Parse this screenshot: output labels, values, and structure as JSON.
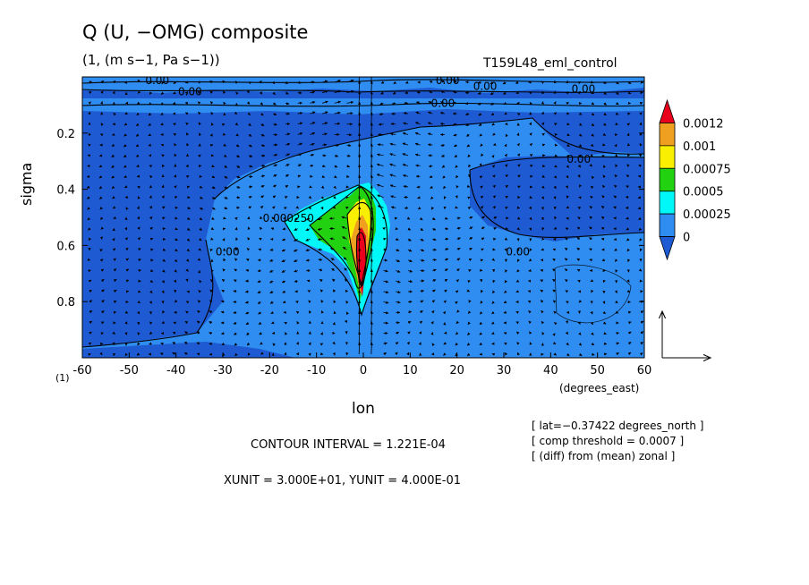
{
  "figure": {
    "title": "Q (U, −OMG) composite",
    "subtitle": "(1, (m s−1, Pa s−1))",
    "run_name": "T159L48_eml_control",
    "contour_interval": "CONTOUR INTERVAL = 1.221E-04",
    "vector_units": "XUNIT = 3.000E+01, YUNIT = 4.000E-01",
    "notes": [
      "[ lat=−0.37422 degrees_north ]",
      "[ comp threshold = 0.0007 ]",
      "[ (diff) from (mean) zonal ]"
    ],
    "one_label": "(1)"
  },
  "chart_data": {
    "type": "heatmap",
    "title": "Q (U, −OMG) composite",
    "xlabel": "lon",
    "x_units": "(degrees_east)",
    "ylabel": "sigma",
    "xlim": [
      -60,
      60
    ],
    "ylim": [
      1.0,
      0.0
    ],
    "x_ticks": [
      -60,
      -50,
      -40,
      -30,
      -20,
      -10,
      0,
      10,
      20,
      30,
      40,
      50,
      60
    ],
    "y_ticks": [
      0.2,
      0.4,
      0.6,
      0.8
    ],
    "colorbar": {
      "levels": [
        "0.0012",
        "0.001",
        "0.00075",
        "0.0005",
        "0.00025",
        "0"
      ],
      "colors": [
        "#e8001c",
        "#f0a020",
        "#f8f000",
        "#22d210",
        "#00f8f8",
        "#2f8cf0",
        "#1e5ad2"
      ]
    },
    "contour_labels": [
      {
        "text": "0.00",
        "lon": -44,
        "sigma": 0.01
      },
      {
        "text": "0.00",
        "lon": -37,
        "sigma": 0.05
      },
      {
        "text": "0.00",
        "lon": 18,
        "sigma": 0.01
      },
      {
        "text": "0.00",
        "lon": 26,
        "sigma": 0.03
      },
      {
        "text": "0.00",
        "lon": 17,
        "sigma": 0.09
      },
      {
        "text": "0.00",
        "lon": 47,
        "sigma": 0.04
      },
      {
        "text": "0.00",
        "lon": 46,
        "sigma": 0.29
      },
      {
        "text": "0.00",
        "lon": 33,
        "sigma": 0.62
      },
      {
        "text": "0.00",
        "lon": -29,
        "sigma": 0.62
      },
      {
        "text": "0.000250",
        "lon": -16,
        "sigma": 0.5
      }
    ],
    "vector_reference": {
      "xunit": 30.0,
      "yunit": 0.4
    }
  }
}
